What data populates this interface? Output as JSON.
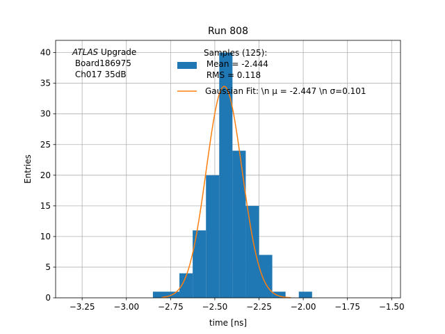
{
  "chart_data": {
    "type": "bar",
    "title": "Run 808",
    "xlabel": "time [ns]",
    "ylabel": "Entries",
    "xlim": [
      -3.4,
      -1.45
    ],
    "ylim": [
      0,
      42
    ],
    "grid": true,
    "x_ticks": [
      -3.25,
      -3.0,
      -2.75,
      -2.5,
      -2.25,
      -2.0,
      -1.75,
      -1.5
    ],
    "x_tick_labels": [
      "−3.25",
      "−3.00",
      "−2.75",
      "−2.50",
      "−2.25",
      "−2.00",
      "−1.75",
      "−1.50"
    ],
    "y_ticks": [
      0,
      5,
      10,
      15,
      20,
      25,
      30,
      35,
      40
    ],
    "y_tick_labels": [
      "0",
      "5",
      "10",
      "15",
      "20",
      "25",
      "30",
      "35",
      "40"
    ],
    "annotation": {
      "lines": [
        {
          "italic": "ATLAS",
          "text": " Upgrade"
        },
        {
          "italic": "",
          "text": " Board186975"
        },
        {
          "italic": "",
          "text": " Ch017 35dB"
        }
      ]
    },
    "legend_placement": "top-right",
    "histogram": {
      "color": "#1f77b4",
      "bins": [
        {
          "x0": -2.85,
          "x1": -2.775,
          "count": 1
        },
        {
          "x0": -2.775,
          "x1": -2.7,
          "count": 1
        },
        {
          "x0": -2.7,
          "x1": -2.625,
          "count": 4
        },
        {
          "x0": -2.625,
          "x1": -2.55,
          "count": 11
        },
        {
          "x0": -2.55,
          "x1": -2.475,
          "count": 20
        },
        {
          "x0": -2.475,
          "x1": -2.4,
          "count": 40
        },
        {
          "x0": -2.4,
          "x1": -2.325,
          "count": 24
        },
        {
          "x0": -2.325,
          "x1": -2.25,
          "count": 15
        },
        {
          "x0": -2.25,
          "x1": -2.175,
          "count": 7
        },
        {
          "x0": -2.175,
          "x1": -2.1,
          "count": 1
        },
        {
          "x0": -2.1,
          "x1": -2.025,
          "count": 0
        },
        {
          "x0": -2.025,
          "x1": -1.95,
          "count": 1
        }
      ],
      "legend_lines": [
        "Samples (125):",
        " Mean = -2.444",
        " RMS = 0.118"
      ]
    },
    "gaussian_fit": {
      "color": "#ff7f0e",
      "amplitude": 34.5,
      "mu": -2.447,
      "sigma": 0.101,
      "x_range": [
        -2.8,
        -2.07
      ],
      "legend_text": "Gaussian Fit: \\n μ = -2.447 \\n σ=0.101"
    }
  }
}
